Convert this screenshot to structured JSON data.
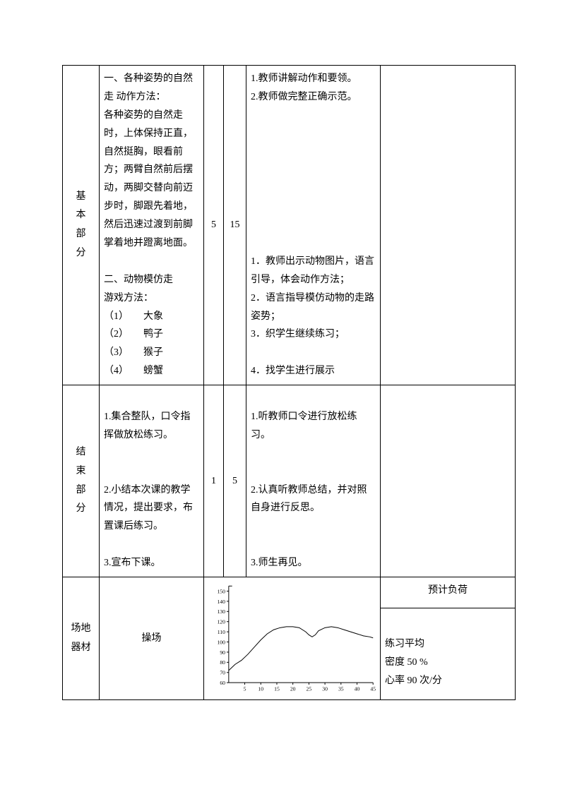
{
  "rows": {
    "basic": {
      "section_label": "基本部分",
      "content_1": "一、各种姿势的自然走 动作方法：\n各种姿势的自然走时，上体保持正直，自然挺胸，眼看前方；两臂自然前后摆动，两脚交替向前迈步时，脚跟先着地，然后迅速过渡到前脚掌着地并蹬离地面。",
      "content_2_title": "二、动物模仿走\n游戏方法：",
      "content_2_items": [
        "（1）　　大象",
        "（2）　　鸭子",
        "（3）　　猴子",
        "（4）　　螃蟹"
      ],
      "num1": "5",
      "num2": "15",
      "activity_1": [
        "1.教师讲解动作和要领。",
        "2.教师做完整正确示范。"
      ],
      "activity_2": [
        "1．教师出示动物图片，语言引导，体会动作方法；",
        "2．语言指导模仿动物的走路姿势；",
        "3．织学生继续练习；",
        "",
        "4．找学生进行展示"
      ],
      "last": ""
    },
    "end": {
      "section_label": "结束部分",
      "content": [
        "",
        "1.集合整队，口令指挥做放松练习。",
        "",
        "",
        "2.小结本次课的教学情况，提出要求，布置课后练习。",
        "",
        "3.宣布下课。"
      ],
      "num1": "1",
      "num2": "5",
      "activity": [
        "",
        "1.听教师口令进行放松练习。",
        "",
        "",
        "2.认真听教师总结，并对照自身进行反思。",
        "",
        "",
        "3.师生再见。"
      ],
      "last": ""
    },
    "venue": {
      "label": "场地器材",
      "value": "操场",
      "load_title": "预计负荷",
      "load_lines": [
        "练习平均",
        "密度 50 %",
        "心率 90 次/分"
      ]
    }
  },
  "chart": {
    "type": "line",
    "xlim": [
      0,
      45
    ],
    "ylim": [
      60,
      155
    ],
    "xticks": [
      5,
      10,
      15,
      20,
      25,
      30,
      35,
      40,
      45
    ],
    "yticks": [
      60,
      70,
      80,
      90,
      100,
      110,
      120,
      130,
      140,
      150
    ],
    "ytick_labels": [
      "60",
      "70",
      "80",
      "90",
      "100",
      "110",
      "120",
      "130",
      "140",
      "150"
    ],
    "line_color": "#000000",
    "axis_color": "#000000",
    "tick_font_size": 8,
    "background_color": "#ffffff",
    "line_width": 1,
    "points": [
      [
        0,
        72
      ],
      [
        2,
        78
      ],
      [
        4,
        82
      ],
      [
        6,
        88
      ],
      [
        8,
        95
      ],
      [
        10,
        102
      ],
      [
        12,
        108
      ],
      [
        14,
        112
      ],
      [
        16,
        114
      ],
      [
        18,
        115
      ],
      [
        20,
        115
      ],
      [
        22,
        114
      ],
      [
        24,
        110
      ],
      [
        25,
        107
      ],
      [
        26,
        105
      ],
      [
        27,
        107
      ],
      [
        28,
        111
      ],
      [
        30,
        114
      ],
      [
        32,
        115
      ],
      [
        34,
        114
      ],
      [
        36,
        112
      ],
      [
        38,
        110
      ],
      [
        40,
        108
      ],
      [
        42,
        106
      ],
      [
        44,
        105
      ],
      [
        45,
        104
      ]
    ]
  }
}
